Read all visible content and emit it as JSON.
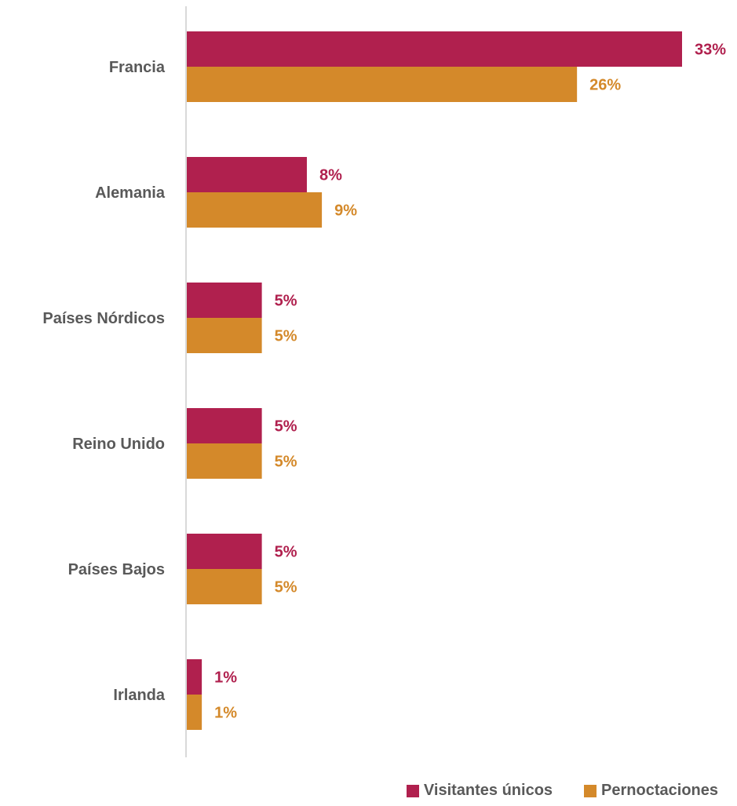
{
  "chart_data": {
    "type": "bar",
    "orientation": "horizontal",
    "categories": [
      "Francia",
      "Alemania",
      "Países Nórdicos",
      "Reino Unido",
      "Países Bajos",
      "Irlanda"
    ],
    "series": [
      {
        "name": "Visitantes únicos",
        "values": [
          33,
          8,
          5,
          5,
          5,
          1
        ],
        "labels": [
          "33%",
          "8%",
          "5%",
          "5%",
          "5%",
          "1%"
        ],
        "color": "#B0204E"
      },
      {
        "name": "Pernoctaciones",
        "values": [
          26,
          9,
          5,
          5,
          5,
          1
        ],
        "labels": [
          "26%",
          "9%",
          "5%",
          "5%",
          "5%",
          "1%"
        ],
        "color": "#D4892A"
      }
    ],
    "xlim": [
      0,
      33
    ],
    "grid": false,
    "legend_position": "bottom-right"
  },
  "colors": {
    "category_text": "#595959",
    "axis_line": "#D9D9D9"
  }
}
